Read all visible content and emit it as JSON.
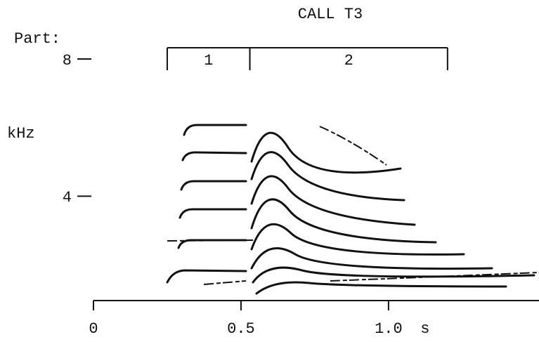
{
  "chart_data": {
    "type": "spectrogram",
    "title": "CALL T3",
    "parts_label": "Part:",
    "parts": [
      {
        "label": "1",
        "start": 0.25,
        "end": 0.53
      },
      {
        "label": "2",
        "start": 0.53,
        "end": 1.2
      }
    ],
    "xlim": [
      0,
      1.51
    ],
    "xticks": [
      0,
      0.5,
      {
        "value": 1,
        "label": "1.0"
      }
    ],
    "xlabel": "s",
    "ylim": [
      1,
      8
    ],
    "yticks": [
      4,
      8
    ],
    "ylabel": "kHz"
  }
}
